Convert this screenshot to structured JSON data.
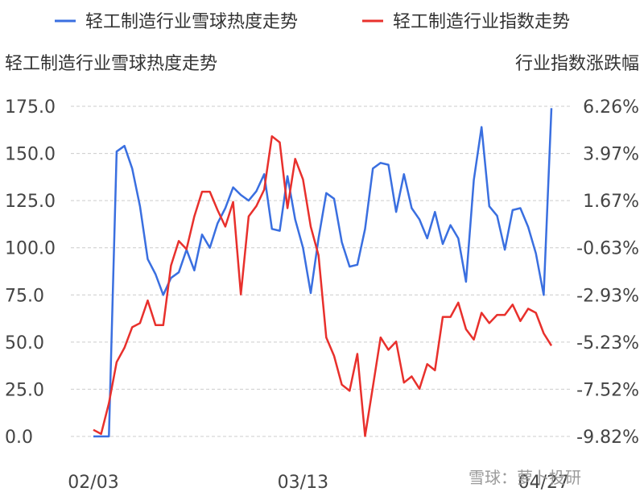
{
  "chart_data": {
    "type": "line",
    "legend": {
      "position": "top",
      "entries": [
        {
          "name": "轻工制造行业雪球热度走势",
          "color": "#3a6fe0"
        },
        {
          "name": "轻工制造行业指数走势",
          "color": "#e8302c"
        }
      ]
    },
    "y_left": {
      "title": "轻工制造行业雪球热度走势",
      "range": [
        0,
        175
      ],
      "ticks": [
        "175.0",
        "150.0",
        "125.0",
        "100.0",
        "75.0",
        "50.0",
        "25.0",
        "0.0"
      ]
    },
    "y_right": {
      "title": "行业指数涨跌幅",
      "range": [
        -9.82,
        6.26
      ],
      "ticks": [
        "6.26%",
        "3.97%",
        "1.67%",
        "-0.63%",
        "-2.93%",
        "-5.23%",
        "-7.52%",
        "-9.82%"
      ]
    },
    "x_ticks": [
      {
        "label": "02/03",
        "index": 0
      },
      {
        "label": "03/13",
        "index": 27
      },
      {
        "label": "04/27",
        "index": 58
      }
    ],
    "grid": true,
    "series": [
      {
        "name": "轻工制造行业雪球热度走势",
        "axis": "left",
        "color": "#3a6fe0",
        "values": [
          0,
          0,
          0,
          151,
          154,
          142,
          122,
          94,
          86,
          75,
          84,
          87,
          99,
          88,
          107,
          100,
          113,
          121,
          132,
          128,
          125,
          130,
          139,
          110,
          109,
          138,
          115,
          100,
          76,
          105,
          129,
          126,
          103,
          90,
          91,
          110,
          142,
          145,
          144,
          119,
          139,
          121,
          115,
          105,
          119,
          102,
          112,
          105,
          82,
          136,
          164,
          122,
          117,
          99,
          120,
          121,
          111,
          97,
          75,
          174
        ]
      },
      {
        "name": "轻工制造行业指数走势",
        "axis": "right",
        "color": "#e8302c",
        "values": [
          -9.5,
          -9.7,
          -8.2,
          -6.2,
          -5.5,
          -4.5,
          -4.3,
          -3.2,
          -4.4,
          -4.4,
          -1.5,
          -0.3,
          -0.7,
          0.9,
          2.1,
          2.1,
          1.2,
          0.4,
          1.6,
          -2.9,
          0.9,
          1.4,
          2.2,
          4.8,
          4.5,
          1.3,
          3.7,
          2.7,
          0.4,
          -1.0,
          -5.0,
          -5.9,
          -7.3,
          -7.6,
          -5.8,
          -9.8,
          -7.4,
          -5.0,
          -5.6,
          -5.2,
          -7.2,
          -6.9,
          -7.5,
          -6.3,
          -6.6,
          -4.0,
          -4.0,
          -3.3,
          -4.6,
          -5.1,
          -3.8,
          -4.3,
          -3.9,
          -3.9,
          -3.4,
          -4.2,
          -3.6,
          -3.8,
          -4.8,
          -5.4
        ]
      }
    ]
  },
  "watermark": "雪球：萝卜投研"
}
